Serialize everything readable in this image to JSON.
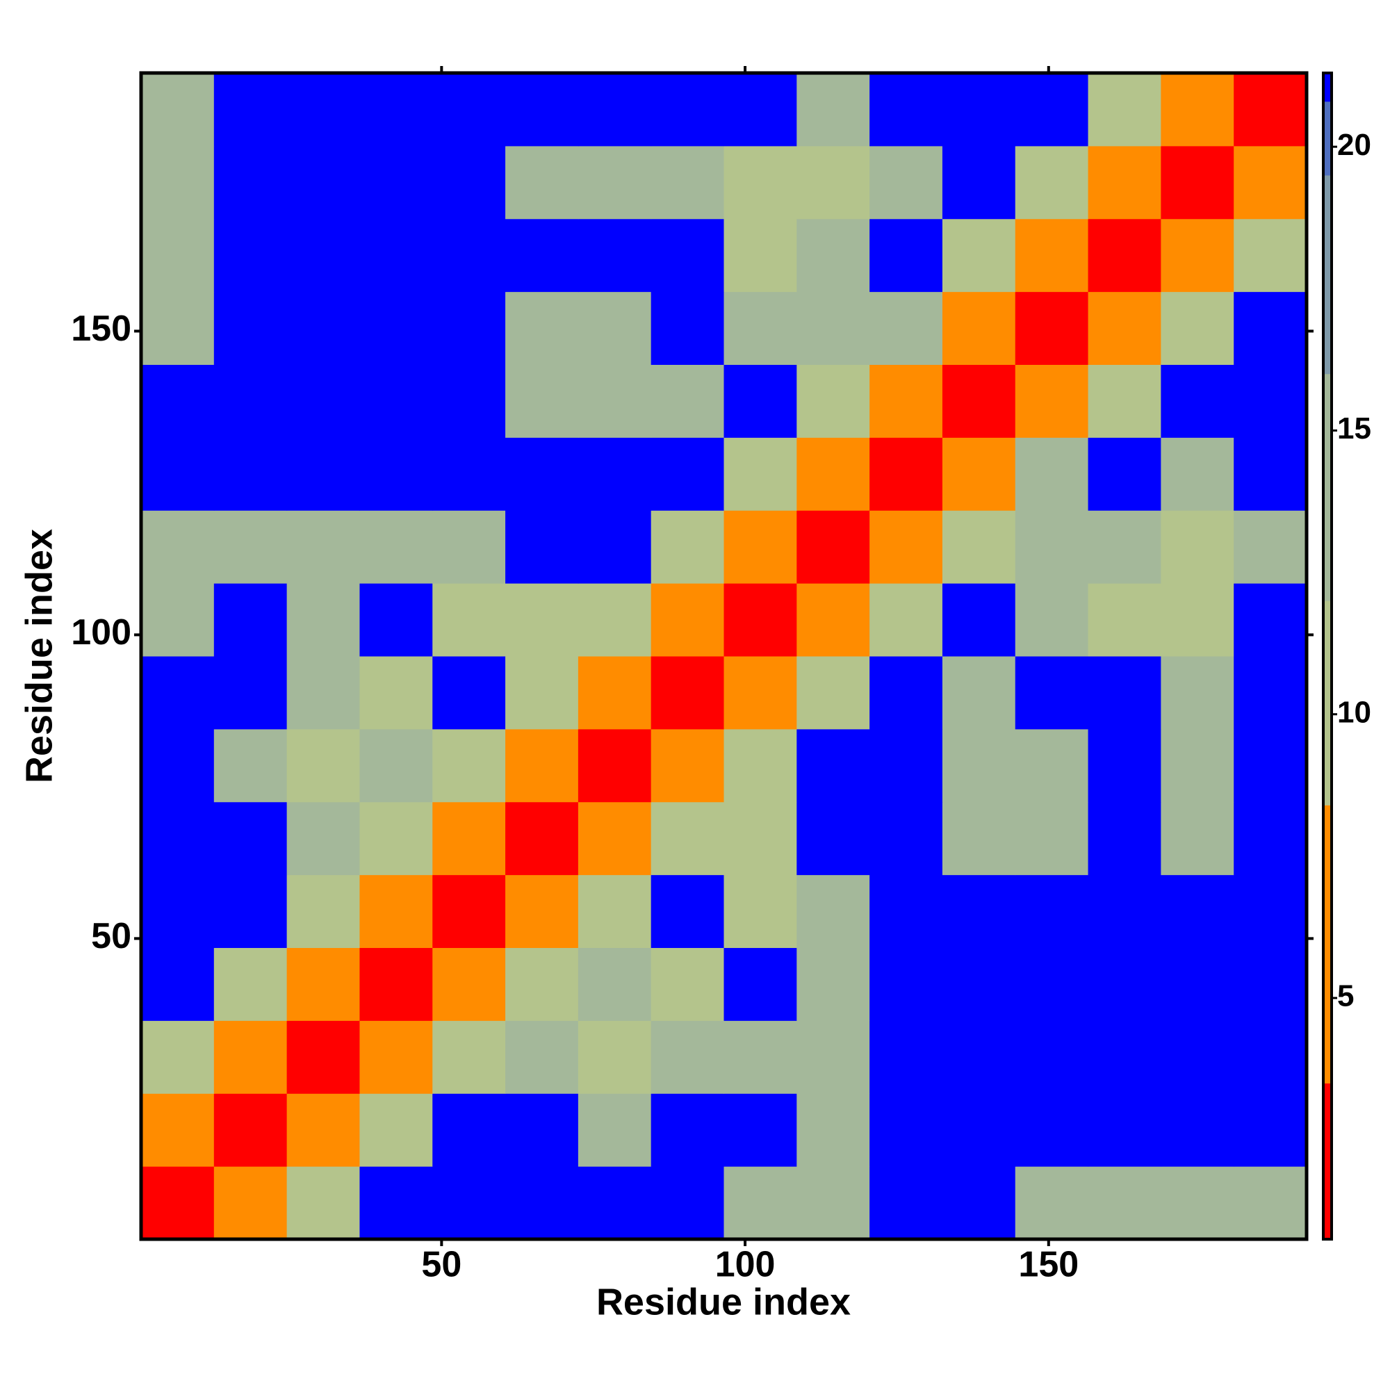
{
  "chart_data": {
    "type": "heatmap",
    "xlabel": "Residue index",
    "ylabel": "Residue index",
    "xlim": [
      0.5,
      192.5
    ],
    "ylim": [
      0.5,
      192.5
    ],
    "xticks": [
      50,
      100,
      150
    ],
    "yticks": [
      50,
      100,
      150
    ],
    "x_bins": [
      0.5,
      12.5,
      24.5,
      36.5,
      48.5,
      60.5,
      72.5,
      84.5,
      96.5,
      108.5,
      120.5,
      132.5,
      144.5,
      156.5,
      168.5,
      180.5,
      192.5
    ],
    "y_bins": [
      0.5,
      12.5,
      24.5,
      36.5,
      48.5,
      60.5,
      72.5,
      84.5,
      96.5,
      108.5,
      120.5,
      132.5,
      144.5,
      156.5,
      168.5,
      180.5,
      192.5
    ],
    "values": [
      [
        3,
        8,
        11,
        21,
        21,
        21,
        21,
        21,
        14,
        14,
        21,
        21,
        14,
        15,
        13,
        13
      ],
      [
        8,
        3,
        8,
        11,
        21,
        21,
        12,
        21,
        21,
        14,
        21,
        21,
        21,
        21,
        21,
        21
      ],
      [
        11,
        8,
        3,
        8,
        11,
        12,
        11,
        13,
        14,
        13,
        21,
        21,
        21,
        21,
        21,
        21
      ],
      [
        21,
        11,
        8,
        3,
        7,
        11,
        13,
        11,
        21,
        14,
        21,
        21,
        21,
        21,
        21,
        21
      ],
      [
        21,
        21,
        11,
        7,
        3,
        7,
        10,
        21,
        10,
        13,
        21,
        21,
        21,
        21,
        21,
        21
      ],
      [
        21,
        21,
        12,
        11,
        7,
        3,
        7,
        10,
        11,
        21,
        21,
        14,
        15,
        21,
        14,
        21
      ],
      [
        21,
        12,
        11,
        13,
        10,
        7,
        3,
        6,
        11,
        21,
        21,
        12,
        13,
        21,
        13,
        21
      ],
      [
        21,
        21,
        13,
        11,
        21,
        10,
        6,
        3,
        7,
        11,
        21,
        13,
        21,
        21,
        13,
        21
      ],
      [
        14,
        21,
        14,
        21,
        10,
        11,
        11,
        7,
        3,
        6,
        11,
        21,
        12,
        11,
        10,
        21
      ],
      [
        14,
        14,
        13,
        14,
        13,
        21,
        21,
        11,
        6,
        3,
        6,
        11,
        13,
        12,
        11,
        13
      ],
      [
        21,
        21,
        21,
        21,
        21,
        21,
        21,
        21,
        11,
        6,
        3,
        7,
        12,
        21,
        13,
        21
      ],
      [
        21,
        21,
        21,
        21,
        21,
        14,
        12,
        13,
        21,
        11,
        7,
        3,
        7,
        11,
        21,
        21
      ],
      [
        14,
        21,
        21,
        21,
        21,
        15,
        13,
        21,
        12,
        13,
        12,
        7,
        3,
        7,
        10,
        21
      ],
      [
        15,
        21,
        21,
        21,
        21,
        21,
        21,
        21,
        11,
        12,
        21,
        11,
        7,
        3,
        7,
        11
      ],
      [
        13,
        21,
        21,
        21,
        21,
        14,
        13,
        13,
        10,
        11,
        13,
        21,
        10,
        7,
        3,
        7
      ],
      [
        13,
        21,
        21,
        21,
        21,
        21,
        21,
        21,
        21,
        13,
        21,
        21,
        21,
        11,
        7,
        3
      ]
    ],
    "colorscale": [
      {
        "value": 0.75,
        "color": "#ff0000"
      },
      {
        "value": 3.5,
        "color": "#ff8c00"
      },
      {
        "value": 8.4,
        "color": "#b4c48c"
      },
      {
        "value": 12,
        "color": "#a4b89a"
      },
      {
        "value": 16,
        "color": "#7f9aaa"
      },
      {
        "value": 19.5,
        "color": "#4f6fc0"
      },
      {
        "value": 20.8,
        "color": "#0000ff"
      }
    ],
    "colorbar_lim": [
      0.75,
      21.3
    ],
    "colorbar_ticks": [
      5,
      10,
      15,
      20
    ]
  }
}
